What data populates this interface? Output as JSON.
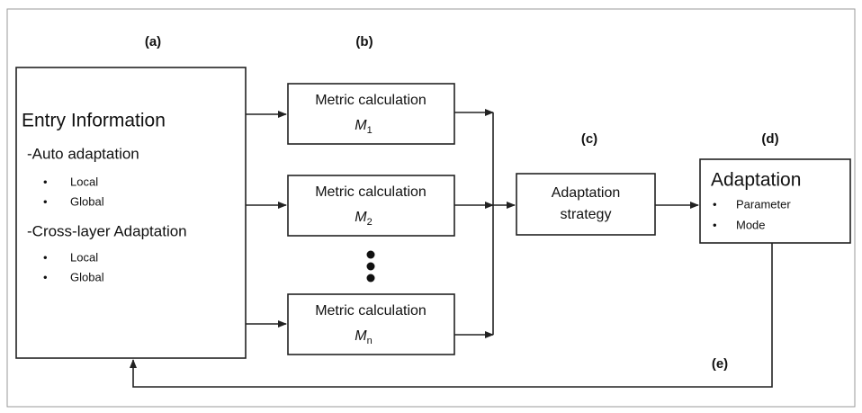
{
  "labels": {
    "a": "(a)",
    "b": "(b)",
    "c": "(c)",
    "d": "(d)",
    "e": "(e)"
  },
  "entry": {
    "title": "Entry Information",
    "groups": [
      {
        "heading": "-Auto adaptation",
        "items": [
          "Local",
          "Global"
        ]
      },
      {
        "heading": "-Cross-layer Adaptation",
        "items": [
          "Local",
          "Global"
        ]
      }
    ]
  },
  "metrics": [
    {
      "label": "Metric calculation",
      "symbol": "M",
      "sub": "1"
    },
    {
      "label": "Metric calculation",
      "symbol": "M",
      "sub": "2"
    },
    {
      "label": "Metric calculation",
      "symbol": "M",
      "sub": "n"
    }
  ],
  "strategy": {
    "lines": [
      "Adaptation",
      "strategy"
    ]
  },
  "adaptation": {
    "title": "Adaptation",
    "items": [
      "Parameter",
      "Mode"
    ]
  }
}
